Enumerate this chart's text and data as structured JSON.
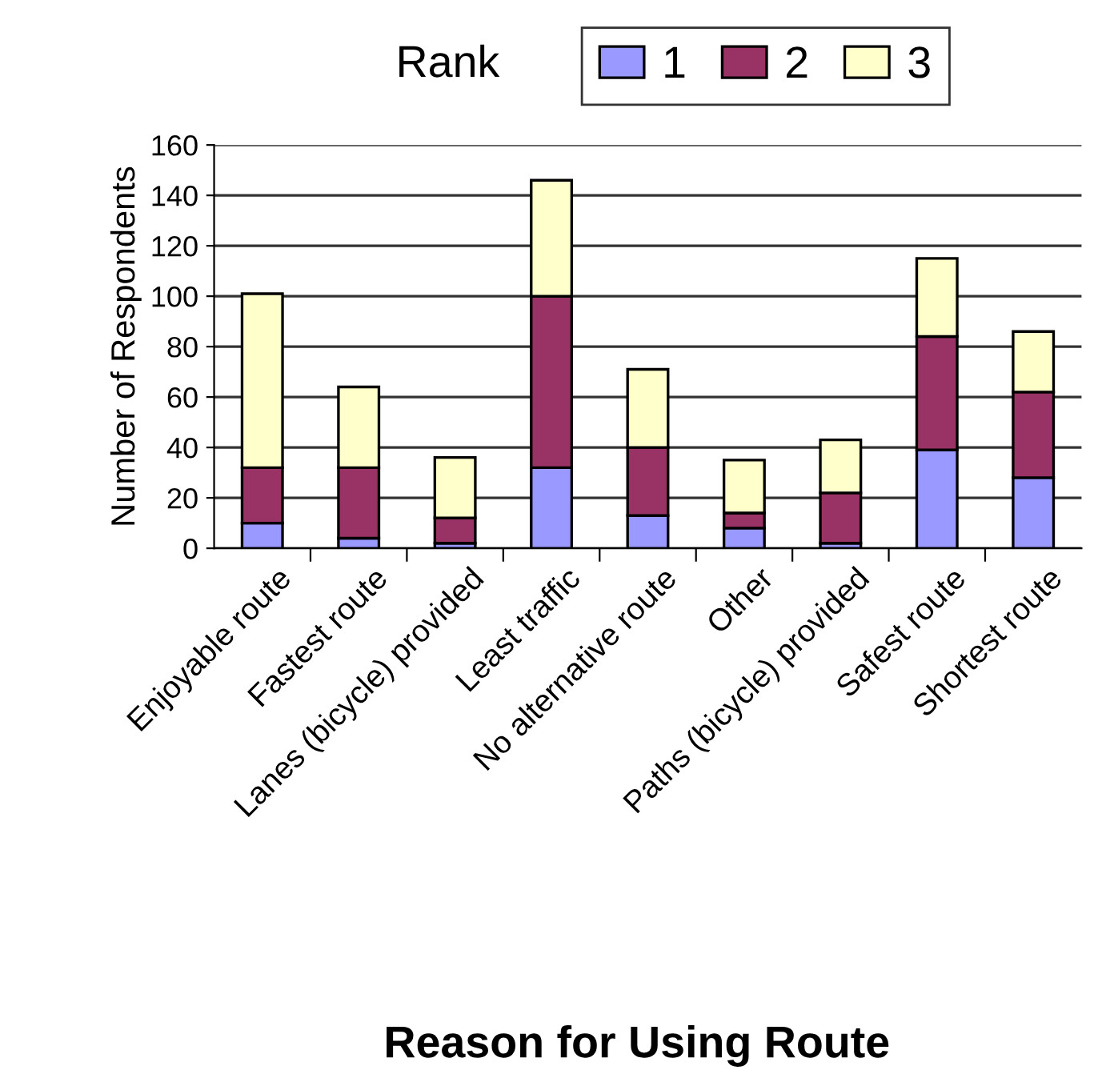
{
  "chart_data": {
    "type": "bar",
    "stacked": true,
    "xlabel": "Reason for Using Route",
    "ylabel": "Number of Respondents",
    "legend_title": "Rank",
    "legend": "top right",
    "categories": [
      "Enjoyable route",
      "Fastest route",
      "Lanes (bicycle) provided",
      "Least traffic",
      "No alternative route",
      "Other",
      "Paths (bicycle) provided",
      "Safest route",
      "Shortest route"
    ],
    "series": [
      {
        "name": "1",
        "color": "#9999ff",
        "values": [
          10,
          4,
          2,
          32,
          13,
          8,
          2,
          39,
          28
        ]
      },
      {
        "name": "2",
        "color": "#993366",
        "values": [
          22,
          28,
          10,
          68,
          27,
          6,
          20,
          45,
          34
        ]
      },
      {
        "name": "3",
        "color": "#ffffcc",
        "values": [
          69,
          32,
          24,
          46,
          31,
          21,
          21,
          31,
          24
        ]
      }
    ],
    "ylim": [
      0,
      160
    ],
    "yticks": [
      0,
      20,
      40,
      60,
      80,
      100,
      120,
      140,
      160
    ],
    "grid": "y"
  }
}
